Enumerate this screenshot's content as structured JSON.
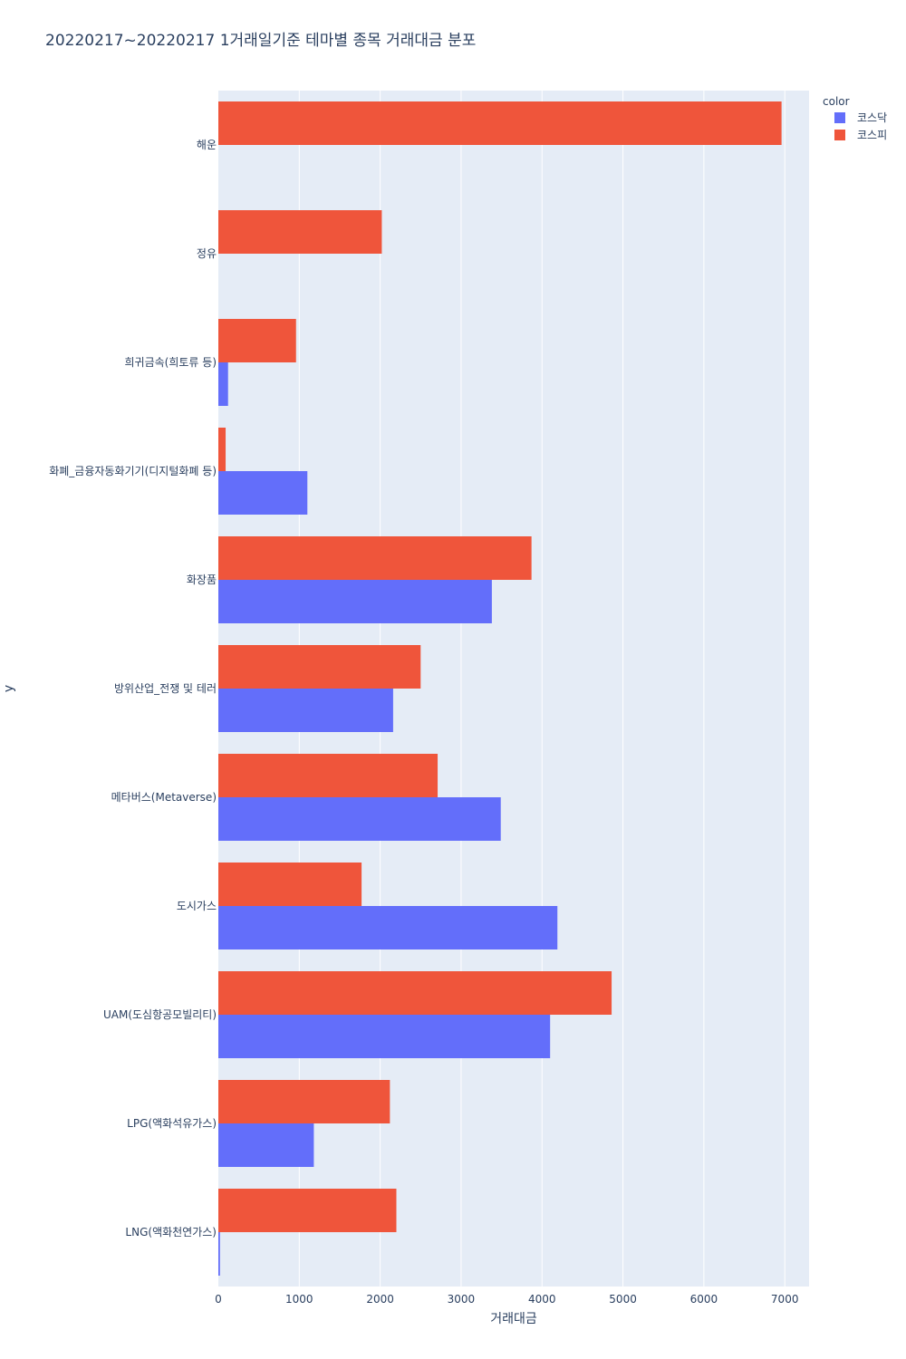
{
  "chart_data": {
    "type": "bar",
    "orientation": "horizontal",
    "title": "20220217~20220217 1거래일기준 테마별 종목 거래대금 분포",
    "xlabel": "거래대금",
    "ylabel": "y",
    "xlim": [
      0,
      7300
    ],
    "xticks": [
      0,
      1000,
      2000,
      3000,
      4000,
      5000,
      6000,
      7000
    ],
    "grid": true,
    "legend": {
      "title": "color",
      "placement": "top-right"
    },
    "categories": [
      "해운",
      "정유",
      "희귀금속(희토류 등)",
      "화폐_금융자동화기기(디지털화폐 등)",
      "화장품",
      "방위산업_전쟁 및 테러",
      "메타버스(Metaverse)",
      "도시가스",
      "UAM(도심항공모빌리티)",
      "LPG(액화석유가스)",
      "LNG(액화천연가스)"
    ],
    "series": [
      {
        "name": "코스닥",
        "color": "#636efa",
        "values": [
          0,
          0,
          120,
          1100,
          3380,
          2160,
          3490,
          4190,
          4100,
          1180,
          20
        ]
      },
      {
        "name": "코스피",
        "color": "#ef553b",
        "values": [
          6960,
          2020,
          960,
          90,
          3870,
          2500,
          2710,
          1770,
          4860,
          2120,
          2200
        ]
      }
    ]
  },
  "colors": {
    "plot_bg": "#e5ecf6",
    "grid": "#ffffff",
    "text": "#2a3f5f"
  }
}
